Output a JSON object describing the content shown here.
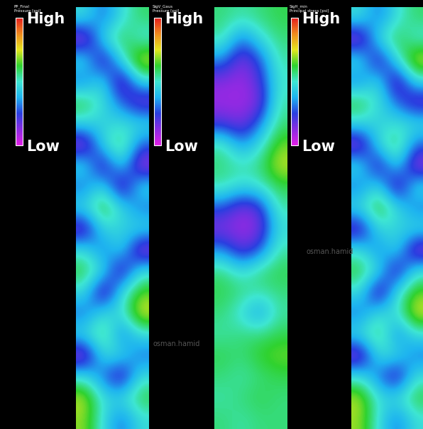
{
  "chart_data": [
    {
      "type": "heatmap",
      "title": "PP_Final",
      "subtitle": "Pressure [psi]",
      "tick_labels": false,
      "colorbar_range": [
        2000,
        7500
      ],
      "colorbar_ticks": [
        {
          "value": 7500,
          "label": "High"
        },
        {
          "value": 2000,
          "label": "Low"
        }
      ],
      "cells": [
        [
          4600,
          3600,
          4600,
          5200
        ],
        [
          2400,
          4600,
          5400,
          4600
        ],
        [
          4600,
          2600,
          4600,
          6200
        ],
        [
          3600,
          4600,
          2400,
          4600
        ],
        [
          5400,
          4600,
          3600,
          2600
        ],
        [
          4600,
          4400,
          4600,
          4600
        ],
        [
          2400,
          4600,
          5400,
          3600
        ],
        [
          4600,
          2600,
          4600,
          2400
        ],
        [
          3600,
          4600,
          2400,
          4600
        ],
        [
          4600,
          5600,
          4600,
          3600
        ],
        [
          2600,
          4600,
          4400,
          4600
        ],
        [
          4600,
          3600,
          4600,
          2400
        ],
        [
          5400,
          4600,
          2600,
          4600
        ],
        [
          4600,
          2400,
          4600,
          5600
        ],
        [
          3600,
          4600,
          4600,
          6200
        ],
        [
          4600,
          5400,
          3600,
          4600
        ],
        [
          2400,
          4600,
          4600,
          3600
        ],
        [
          4600,
          3600,
          2600,
          4600
        ],
        [
          6000,
          4600,
          4600,
          5400
        ],
        [
          5800,
          4600,
          3600,
          4600
        ]
      ]
    },
    {
      "type": "heatmap",
      "title": "SigV_Gaus",
      "subtitle": "Pressure [psi]",
      "tick_labels": false,
      "annotations": [
        "osman.hamid"
      ],
      "colorbar_range": [
        7500,
        9000
      ],
      "colorbar_ticks": [
        {
          "value": 9000,
          "label": "High"
        },
        {
          "value": 7500,
          "label": "Low"
        }
      ],
      "cells": [
        [
          8350,
          8300,
          8350,
          8400
        ],
        [
          8300,
          7950,
          8200,
          8350
        ],
        [
          8000,
          7700,
          7900,
          8300
        ],
        [
          7700,
          7650,
          7800,
          8250
        ],
        [
          7650,
          7650,
          7700,
          8300
        ],
        [
          7800,
          7700,
          7950,
          8350
        ],
        [
          8300,
          8000,
          8200,
          8500
        ],
        [
          8350,
          8300,
          8350,
          8600
        ],
        [
          8300,
          8200,
          8250,
          8400
        ],
        [
          7900,
          7700,
          7800,
          8300
        ],
        [
          7700,
          7650,
          7700,
          8200
        ],
        [
          8000,
          7750,
          7900,
          8300
        ],
        [
          8350,
          8200,
          8350,
          8400
        ],
        [
          8400,
          8350,
          8300,
          8350
        ],
        [
          8350,
          8200,
          8000,
          8300
        ],
        [
          8300,
          8350,
          8350,
          8400
        ],
        [
          8400,
          8350,
          8450,
          8500
        ],
        [
          8350,
          8300,
          8350,
          8400
        ],
        [
          8300,
          8350,
          8400,
          8350
        ],
        [
          8350,
          8300,
          8350,
          8350
        ]
      ]
    },
    {
      "type": "heatmap",
      "title": "SigH_min",
      "subtitle": "Principal stress [psi]",
      "tick_labels": false,
      "annotations": [
        "osman.hamid"
      ],
      "colorbar_range": [
        4500,
        7000
      ],
      "colorbar_ticks": [
        {
          "value": 7000,
          "label": "High"
        },
        {
          "value": 4500,
          "label": "Low"
        }
      ],
      "cells": [
        [
          5700,
          5250,
          5700,
          5950
        ],
        [
          4700,
          5700,
          6050,
          5700
        ],
        [
          5700,
          4800,
          5700,
          6400
        ],
        [
          5250,
          5700,
          4700,
          5700
        ],
        [
          6050,
          5700,
          5250,
          4800
        ],
        [
          5700,
          5600,
          5700,
          5700
        ],
        [
          4700,
          5700,
          6050,
          5250
        ],
        [
          5700,
          4800,
          5700,
          4700
        ],
        [
          5250,
          5700,
          4700,
          5700
        ],
        [
          5700,
          6150,
          5700,
          5250
        ],
        [
          4800,
          5700,
          5600,
          5700
        ],
        [
          5700,
          5250,
          5700,
          4700
        ],
        [
          6050,
          5700,
          4800,
          5700
        ],
        [
          5700,
          4700,
          5700,
          6150
        ],
        [
          5250,
          5700,
          5700,
          6400
        ],
        [
          5700,
          6050,
          5250,
          5700
        ],
        [
          4700,
          5700,
          5700,
          5250
        ],
        [
          5700,
          5250,
          4800,
          5700
        ],
        [
          6300,
          5700,
          5700,
          6050
        ],
        [
          6250,
          5700,
          5250,
          5700
        ]
      ]
    }
  ]
}
